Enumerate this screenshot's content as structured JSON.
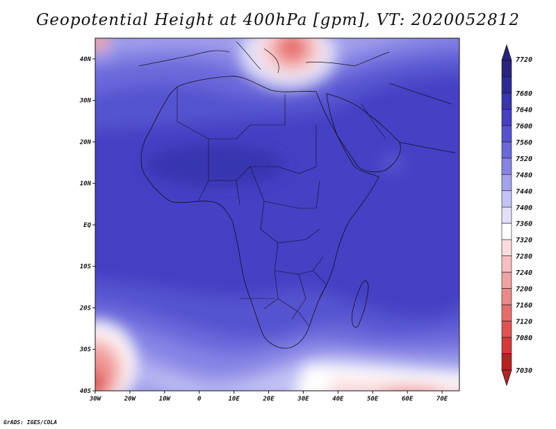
{
  "title": "Geopotential Height at 400hPa [gpm], VT: 2020052812",
  "credit": "GrADS: IGES/COLA",
  "map": {
    "lon_range": [
      -30,
      75
    ],
    "lat_range": [
      -40,
      45
    ],
    "x_ticks": [
      "30W",
      "20W",
      "10W",
      "0",
      "10E",
      "20E",
      "30E",
      "40E",
      "50E",
      "60E",
      "70E"
    ],
    "y_ticks": [
      "40S",
      "30S",
      "20S",
      "10S",
      "EQ",
      "10N",
      "20N",
      "30N",
      "40N"
    ]
  },
  "colorbar": {
    "labels": [
      "7720",
      "7680",
      "7640",
      "7600",
      "7560",
      "7520",
      "7480",
      "7440",
      "7400",
      "7360",
      "7320",
      "7280",
      "7240",
      "7200",
      "7160",
      "7120",
      "7080",
      "7030"
    ],
    "colors": [
      "#28237f",
      "#2d2a98",
      "#3734b0",
      "#4540c4",
      "#5452cf",
      "#6a68da",
      "#8583e4",
      "#a3a2ec",
      "#c3c2f4",
      "#e0e0fa",
      "#ffffff",
      "#fbdcdc",
      "#f6c0c0",
      "#f1a3a3",
      "#ec8888",
      "#e76d6d",
      "#e15252",
      "#d43a3a",
      "#b82222"
    ]
  }
}
